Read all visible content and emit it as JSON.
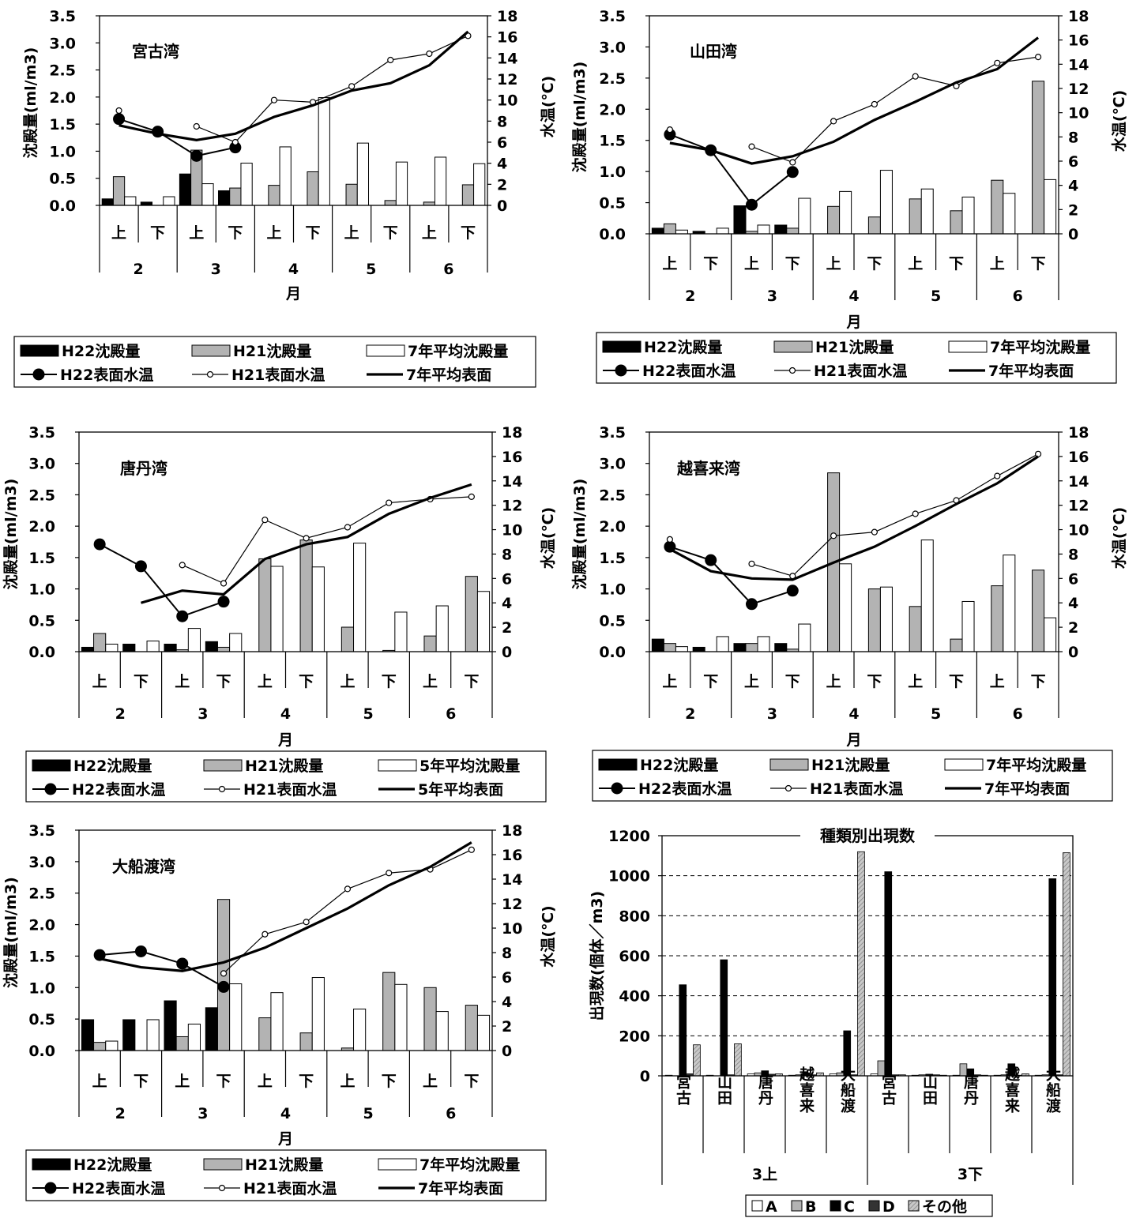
{
  "chart_data": [
    {
      "type": "bar+line",
      "title": "宮古湾",
      "xlabel": "月",
      "ylabel_left": "沈殿量(ml/m3)",
      "ylabel_right": "水温(℃)",
      "ylim_left": [
        0,
        3.5
      ],
      "ylim_right": [
        0,
        18
      ],
      "left_ticks": [
        "0.0",
        "0.5",
        "1.0",
        "1.5",
        "2.0",
        "2.5",
        "3.0",
        "3.5"
      ],
      "right_ticks": [
        "0",
        "2",
        "4",
        "6",
        "8",
        "10",
        "12",
        "14",
        "16",
        "18"
      ],
      "categories": [
        "上",
        "下",
        "上",
        "下",
        "上",
        "下",
        "上",
        "下",
        "上",
        "下"
      ],
      "months": [
        "2",
        "3",
        "4",
        "5",
        "6"
      ],
      "series": [
        {
          "name": "H22沈殿量",
          "kind": "bar",
          "fill": "#000000",
          "values": [
            0.12,
            0.06,
            0.58,
            0.27,
            null,
            null,
            null,
            null,
            null,
            null
          ]
        },
        {
          "name": "H21沈殿量",
          "kind": "bar",
          "fill": "#b3b3b3",
          "values": [
            0.53,
            0.0,
            1.02,
            0.32,
            0.37,
            0.62,
            0.39,
            0.09,
            0.06,
            0.38
          ]
        },
        {
          "name": "7年平均沈殿量",
          "kind": "bar",
          "fill": "#ffffff",
          "values": [
            0.16,
            0.16,
            0.4,
            0.78,
            1.08,
            1.99,
            1.15,
            0.8,
            0.89,
            0.77
          ]
        },
        {
          "name": "H22表面水温",
          "kind": "line-big",
          "values": [
            8.2,
            7.0,
            4.7,
            5.5,
            null,
            null,
            null,
            null,
            null,
            null
          ]
        },
        {
          "name": "H21表面水温",
          "kind": "line-small",
          "values": [
            9.0,
            null,
            7.5,
            6.0,
            10.0,
            9.8,
            11.3,
            13.8,
            14.4,
            16.1
          ]
        },
        {
          "name": "7年平均表面",
          "kind": "line-thick",
          "values": [
            7.6,
            6.8,
            6.2,
            6.8,
            8.4,
            9.5,
            10.9,
            11.6,
            13.3,
            16.5
          ]
        }
      ],
      "legend": {
        "position": "below"
      }
    },
    {
      "type": "bar+line",
      "title": "山田湾",
      "xlabel": "月",
      "ylabel_left": "沈殿量(ml/m3)",
      "ylabel_right": "水温(℃)",
      "ylim_left": [
        0,
        3.5
      ],
      "ylim_right": [
        0,
        18
      ],
      "left_ticks": [
        "0.0",
        "0.5",
        "1.0",
        "1.5",
        "2.0",
        "2.5",
        "3.0",
        "3.5"
      ],
      "right_ticks": [
        "0",
        "2",
        "4",
        "6",
        "8",
        "10",
        "12",
        "14",
        "16",
        "18"
      ],
      "categories": [
        "上",
        "下",
        "上",
        "下",
        "上",
        "下",
        "上",
        "下",
        "上",
        "下"
      ],
      "months": [
        "2",
        "3",
        "4",
        "5",
        "6"
      ],
      "series": [
        {
          "name": "H22沈殿量",
          "kind": "bar",
          "fill": "#000000",
          "values": [
            0.09,
            0.04,
            0.45,
            0.14,
            null,
            null,
            null,
            null,
            null,
            null
          ]
        },
        {
          "name": "H21沈殿量",
          "kind": "bar",
          "fill": "#b3b3b3",
          "values": [
            0.16,
            0.0,
            0.04,
            0.09,
            0.44,
            0.27,
            0.56,
            0.37,
            0.86,
            2.45
          ]
        },
        {
          "name": "7年平均沈殿量",
          "kind": "bar",
          "fill": "#ffffff",
          "values": [
            0.06,
            0.09,
            0.14,
            0.57,
            0.68,
            1.02,
            0.72,
            0.59,
            0.65,
            0.87
          ]
        },
        {
          "name": "H22表面水温",
          "kind": "line-big",
          "values": [
            8.2,
            6.9,
            2.4,
            5.1,
            null,
            null,
            null,
            null,
            null,
            null
          ]
        },
        {
          "name": "H21表面水温",
          "kind": "line-small",
          "values": [
            8.6,
            null,
            7.2,
            5.9,
            9.3,
            10.7,
            13.0,
            12.2,
            14.1,
            14.6
          ]
        },
        {
          "name": "7年平均表面",
          "kind": "line-thick",
          "values": [
            7.5,
            6.9,
            5.8,
            6.4,
            7.6,
            9.4,
            10.9,
            12.5,
            13.6,
            16.2
          ]
        }
      ],
      "legend": {
        "position": "below"
      }
    },
    {
      "type": "bar+line",
      "title": "唐丹湾",
      "xlabel": "月",
      "ylabel_left": "沈殿量(ml/m3)",
      "ylabel_right": "水温(℃)",
      "ylim_left": [
        0,
        3.5
      ],
      "ylim_right": [
        0,
        18
      ],
      "left_ticks": [
        "0.0",
        "0.5",
        "1.0",
        "1.5",
        "2.0",
        "2.5",
        "3.0",
        "3.5"
      ],
      "right_ticks": [
        "0",
        "2",
        "4",
        "6",
        "8",
        "10",
        "12",
        "14",
        "16",
        "18"
      ],
      "categories": [
        "上",
        "下",
        "上",
        "下",
        "上",
        "下",
        "上",
        "下",
        "上",
        "下"
      ],
      "months": [
        "2",
        "3",
        "4",
        "5",
        "6"
      ],
      "series": [
        {
          "name": "H22沈殿量",
          "kind": "bar",
          "fill": "#000000",
          "values": [
            0.07,
            0.12,
            0.12,
            0.16,
            null,
            null,
            null,
            null,
            null,
            null
          ]
        },
        {
          "name": "H21沈殿量",
          "kind": "bar",
          "fill": "#b3b3b3",
          "values": [
            0.29,
            0.0,
            0.03,
            0.07,
            1.48,
            1.78,
            0.39,
            0.02,
            0.25,
            1.2
          ]
        },
        {
          "name": "5年平均沈殿量",
          "kind": "bar",
          "fill": "#ffffff",
          "values": [
            0.12,
            0.17,
            0.37,
            0.29,
            1.36,
            1.35,
            1.73,
            0.63,
            0.73,
            0.96
          ]
        },
        {
          "name": "H22表面水温",
          "kind": "line-big",
          "values": [
            8.8,
            7.0,
            2.9,
            4.1,
            null,
            null,
            null,
            null,
            null,
            null
          ]
        },
        {
          "name": "H21表面水温",
          "kind": "line-small",
          "values": [
            null,
            null,
            7.1,
            5.6,
            10.8,
            9.3,
            10.2,
            12.2,
            12.5,
            12.7
          ]
        },
        {
          "name": "5年平均表面",
          "kind": "line-thick",
          "values": [
            null,
            4.0,
            5.0,
            4.7,
            7.6,
            8.8,
            9.4,
            11.3,
            12.6,
            13.7
          ]
        }
      ],
      "legend": {
        "position": "below"
      }
    },
    {
      "type": "bar+line",
      "title": "越喜来湾",
      "xlabel": "月",
      "ylabel_left": "沈殿量(ml/m3)",
      "ylabel_right": "水温(℃)",
      "ylim_left": [
        0,
        3.5
      ],
      "ylim_right": [
        0,
        18
      ],
      "left_ticks": [
        "0.0",
        "0.5",
        "1.0",
        "1.5",
        "2.0",
        "2.5",
        "3.0",
        "3.5"
      ],
      "right_ticks": [
        "0",
        "2",
        "4",
        "6",
        "8",
        "10",
        "12",
        "14",
        "16",
        "18"
      ],
      "categories": [
        "上",
        "下",
        "上",
        "下",
        "上",
        "下",
        "上",
        "下",
        "上",
        "下"
      ],
      "months": [
        "2",
        "3",
        "4",
        "5",
        "6"
      ],
      "series": [
        {
          "name": "H22沈殿量",
          "kind": "bar",
          "fill": "#000000",
          "values": [
            0.2,
            0.07,
            0.13,
            0.13,
            null,
            null,
            null,
            null,
            null,
            null
          ]
        },
        {
          "name": "H21沈殿量",
          "kind": "bar",
          "fill": "#b3b3b3",
          "values": [
            0.13,
            0.0,
            0.13,
            0.04,
            2.85,
            1.0,
            0.72,
            0.2,
            1.05,
            1.3
          ]
        },
        {
          "name": "7年平均沈殿量",
          "kind": "bar",
          "fill": "#ffffff",
          "values": [
            0.08,
            0.24,
            0.24,
            0.44,
            1.4,
            1.03,
            1.78,
            0.8,
            1.54,
            0.54
          ]
        },
        {
          "name": "H22表面水温",
          "kind": "line-big",
          "values": [
            8.6,
            7.5,
            3.9,
            5.0,
            null,
            null,
            null,
            null,
            null,
            null
          ]
        },
        {
          "name": "H21表面水温",
          "kind": "line-small",
          "values": [
            9.2,
            null,
            7.2,
            6.2,
            9.5,
            9.8,
            11.3,
            12.4,
            14.4,
            16.2
          ]
        },
        {
          "name": "7年平均表面",
          "kind": "line-thick",
          "values": [
            8.4,
            6.6,
            6.0,
            5.9,
            7.3,
            8.6,
            10.3,
            12.1,
            13.8,
            16.0
          ]
        }
      ],
      "legend": {
        "position": "below"
      }
    },
    {
      "type": "bar+line",
      "title": "大船渡湾",
      "xlabel": "月",
      "ylabel_left": "沈殿量(ml/m3)",
      "ylabel_right": "水温(℃)",
      "ylim_left": [
        0,
        3.5
      ],
      "ylim_right": [
        0,
        18
      ],
      "left_ticks": [
        "0.0",
        "0.5",
        "1.0",
        "1.5",
        "2.0",
        "2.5",
        "3.0",
        "3.5"
      ],
      "right_ticks": [
        "0",
        "2",
        "4",
        "6",
        "8",
        "10",
        "12",
        "14",
        "16",
        "18"
      ],
      "categories": [
        "上",
        "下",
        "上",
        "下",
        "上",
        "下",
        "上",
        "下",
        "上",
        "下"
      ],
      "months": [
        "2",
        "3",
        "4",
        "5",
        "6"
      ],
      "series": [
        {
          "name": "H22沈殿量",
          "kind": "bar",
          "fill": "#000000",
          "values": [
            0.49,
            0.49,
            0.79,
            0.68,
            null,
            null,
            null,
            null,
            null,
            null
          ]
        },
        {
          "name": "H21沈殿量",
          "kind": "bar",
          "fill": "#b3b3b3",
          "values": [
            0.13,
            0.0,
            0.22,
            2.4,
            0.52,
            0.28,
            0.04,
            1.24,
            1.0,
            0.72
          ]
        },
        {
          "name": "7年平均沈殿量",
          "kind": "bar",
          "fill": "#ffffff",
          "values": [
            0.15,
            0.49,
            0.42,
            1.06,
            0.92,
            1.16,
            0.66,
            1.05,
            0.62,
            0.56
          ]
        },
        {
          "name": "H22表面水温",
          "kind": "line-big",
          "values": [
            7.8,
            8.1,
            7.1,
            5.2,
            null,
            null,
            null,
            null,
            null,
            null
          ]
        },
        {
          "name": "H21表面水温",
          "kind": "line-small",
          "values": [
            null,
            null,
            null,
            6.3,
            9.5,
            10.5,
            13.2,
            14.5,
            14.8,
            16.4
          ]
        },
        {
          "name": "7年平均表面",
          "kind": "line-thick",
          "values": [
            7.5,
            6.8,
            6.5,
            7.2,
            8.4,
            10.0,
            11.6,
            13.5,
            15.0,
            17.0
          ]
        }
      ],
      "legend": {
        "position": "below"
      }
    },
    {
      "type": "bar",
      "title": "種類別出現数",
      "ylabel": "出現数(個体／m3)",
      "ylim": [
        0,
        1200
      ],
      "y_ticks": [
        "0",
        "200",
        "400",
        "600",
        "800",
        "1000",
        "1200"
      ],
      "grid": true,
      "categories": [
        "宮古",
        "山田",
        "唐丹",
        "越喜来",
        "大船渡",
        "宮古",
        "山田",
        "唐丹",
        "越喜来",
        "大船渡"
      ],
      "groups": [
        "3上",
        "3下"
      ],
      "series": [
        {
          "name": "A",
          "fill": "#ffffff",
          "values": [
            3,
            3,
            10,
            3,
            10,
            10,
            3,
            3,
            3,
            3
          ]
        },
        {
          "name": "B",
          "fill": "#b3b3b3",
          "values": [
            0,
            0,
            15,
            5,
            15,
            75,
            5,
            60,
            5,
            5
          ]
        },
        {
          "name": "C",
          "fill": "#000000",
          "values": [
            455,
            580,
            25,
            15,
            225,
            1020,
            8,
            35,
            60,
            985
          ]
        },
        {
          "name": "D",
          "fill": "#333333",
          "values": [
            10,
            5,
            8,
            5,
            5,
            5,
            5,
            5,
            3,
            5
          ]
        },
        {
          "name": "その他",
          "fill": "hatch",
          "values": [
            155,
            160,
            10,
            15,
            1120,
            5,
            3,
            3,
            10,
            1115
          ]
        }
      ],
      "legend": {
        "position": "bottom"
      }
    }
  ]
}
